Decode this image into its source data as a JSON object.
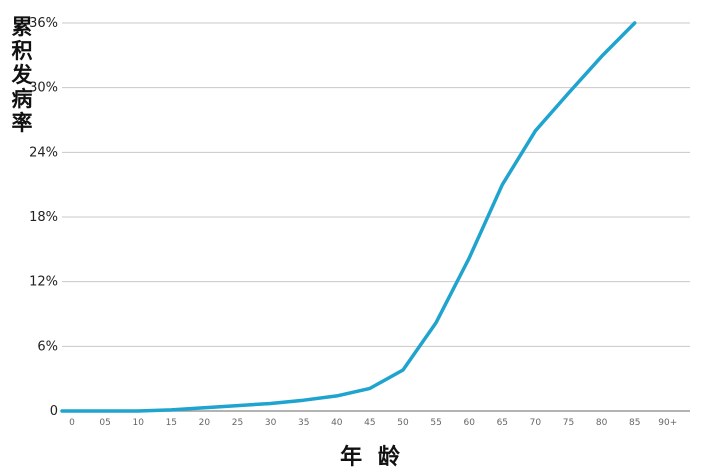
{
  "chart_data": {
    "type": "line",
    "title": "",
    "ylabel": "累积发病率",
    "xlabel": "年 龄",
    "x_ticks": [
      "0",
      "05",
      "10",
      "15",
      "20",
      "25",
      "30",
      "35",
      "40",
      "45",
      "50",
      "55",
      "60",
      "65",
      "70",
      "75",
      "80",
      "85",
      "90+"
    ],
    "y_ticks": [
      "0",
      "6%",
      "12%",
      "18%",
      "24%",
      "30%",
      "36%"
    ],
    "ylim": [
      0,
      36
    ],
    "grid": true,
    "legend": "none",
    "colors": {
      "line": "#1fa3cf",
      "grid": "#c8c8c8",
      "baseline": "#9a9a9a"
    },
    "series": [
      {
        "x": [
          0,
          5,
          10,
          15,
          20,
          25,
          30,
          35,
          40,
          45,
          50,
          55,
          60,
          65,
          70,
          75,
          80,
          85
        ],
        "values": [
          0,
          0,
          0,
          0.1,
          0.3,
          0.5,
          0.7,
          1.0,
          1.4,
          2.1,
          3.8,
          8.2,
          14.2,
          21.0,
          26.0,
          29.5,
          32.9,
          36.0
        ]
      }
    ]
  }
}
